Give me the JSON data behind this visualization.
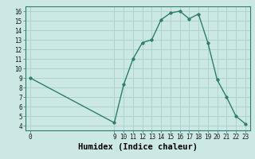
{
  "xlabel": "Humidex (Indice chaleur)",
  "x_values": [
    0,
    9,
    10,
    11,
    12,
    13,
    14,
    15,
    16,
    17,
    18,
    19,
    20,
    21,
    22,
    23
  ],
  "y_values": [
    9,
    4.3,
    8.3,
    11,
    12.7,
    13,
    15.1,
    15.8,
    16,
    15.2,
    15.7,
    12.7,
    8.8,
    7,
    5,
    4.2
  ],
  "xlim": [
    -0.5,
    23.5
  ],
  "ylim": [
    3.5,
    16.5
  ],
  "yticks": [
    4,
    5,
    6,
    7,
    8,
    9,
    10,
    11,
    12,
    13,
    14,
    15,
    16
  ],
  "xticks": [
    0,
    9,
    10,
    11,
    12,
    13,
    14,
    15,
    16,
    17,
    18,
    19,
    20,
    21,
    22,
    23
  ],
  "line_color": "#2e7d6e",
  "marker_color": "#2e7d6e",
  "bg_color": "#cce8e4",
  "grid_color_major": "#aacfcb",
  "grid_color_minor": "#ddecea",
  "tick_label_fontsize": 5.5,
  "xlabel_fontsize": 7.5
}
